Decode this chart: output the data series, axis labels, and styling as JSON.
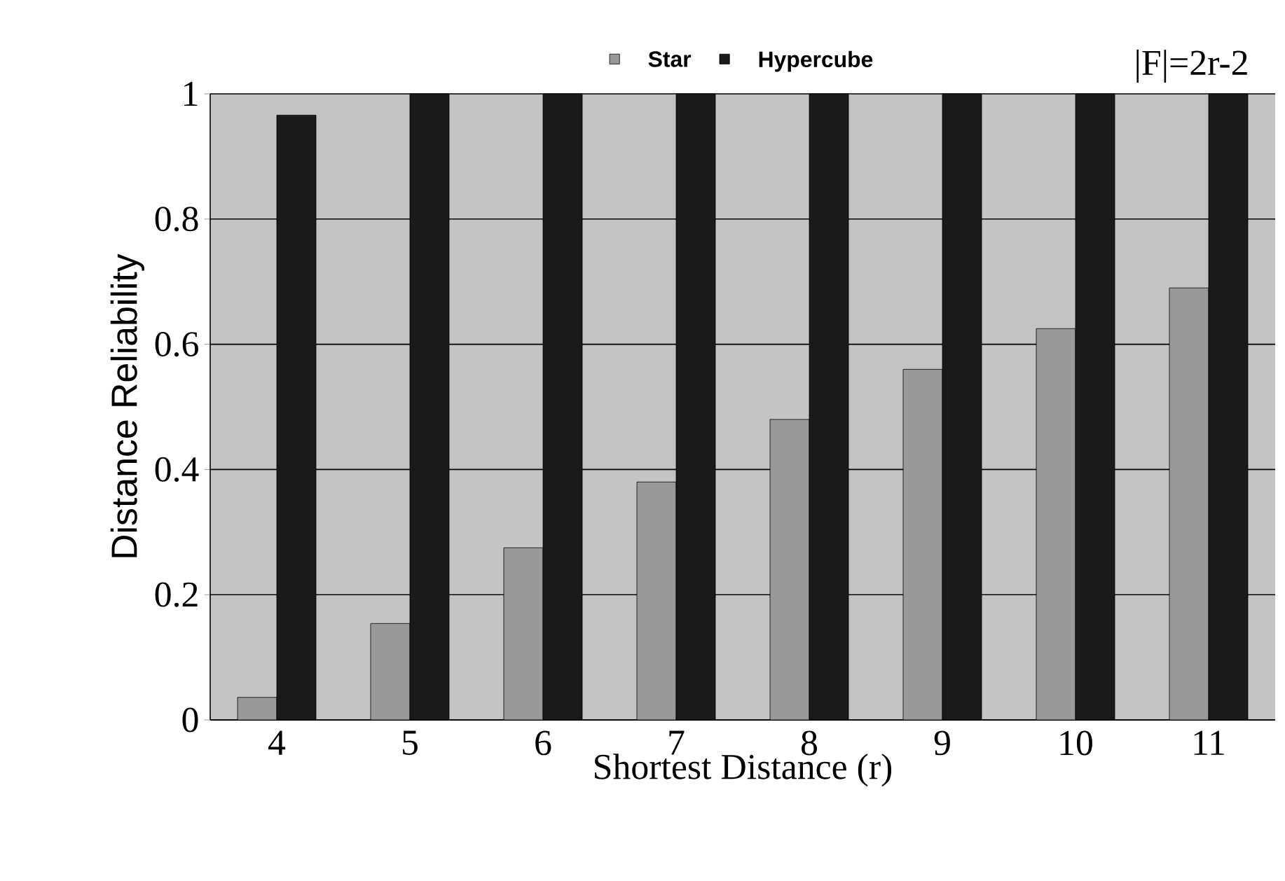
{
  "chart_data": {
    "type": "bar",
    "xlabel": "Shortest Distance (r)",
    "ylabel": "Distance Reliability",
    "annotations": [
      "|F|=2r-2"
    ],
    "categories": [
      "4",
      "5",
      "6",
      "7",
      "8",
      "9",
      "10",
      "11"
    ],
    "series": [
      {
        "name": "Star",
        "color": "#999999",
        "values": [
          0.036,
          0.154,
          0.275,
          0.38,
          0.48,
          0.56,
          0.625,
          0.69
        ]
      },
      {
        "name": "Hypercube",
        "color": "#1a1a1a",
        "values": [
          0.966,
          1,
          1,
          1,
          1,
          1,
          1,
          1
        ]
      }
    ],
    "ylim": [
      0,
      1
    ],
    "yticks": [
      0,
      0.2,
      0.4,
      0.6,
      0.8,
      1
    ],
    "grid": "y",
    "legend": "top"
  }
}
